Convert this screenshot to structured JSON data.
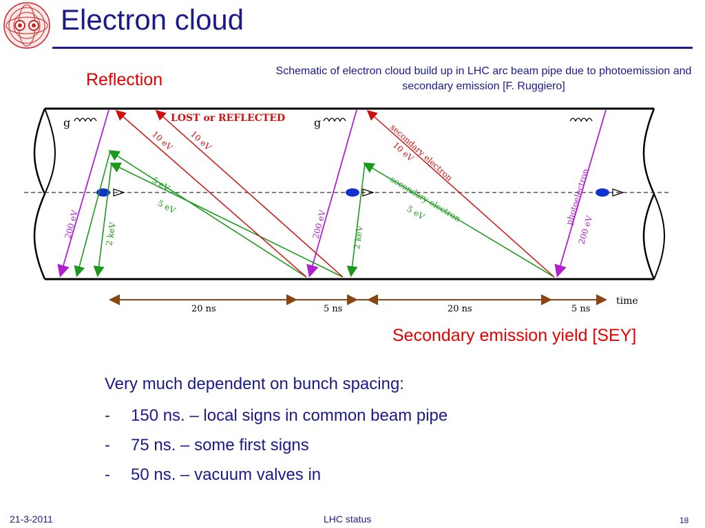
{
  "slide": {
    "title": "Electron cloud",
    "reflection_label": "Reflection",
    "caption": "Schematic of electron cloud build up in LHC arc beam pipe due to photoemission and secondary emission [F. Ruggiero]",
    "sey_label": "Secondary emission yield [SEY]"
  },
  "diagram": {
    "lost_label": "LOST or REFLECTED",
    "gamma1": "g",
    "gamma2": "g",
    "ev10_a": "10 eV",
    "ev10_b": "10 eV",
    "ev5_a": "5 eV",
    "ev5_b": "5 eV",
    "ev200_a": "200 eV",
    "kev2_a": "2 keV",
    "ev200_b": "200 eV",
    "kev2_b": "2 keV",
    "secondary_electron_top": "secondary electron",
    "ev10_c": "10 eV",
    "secondary_electron_mid": "secondary electron",
    "ev5_c": "5 eV",
    "photoelectron": "photoelectron",
    "ev200_c": "200 eV",
    "t20a": "20 ns",
    "t5a": "5 ns",
    "t20b": "20 ns",
    "t5b": "5 ns",
    "time": "time",
    "colors": {
      "red": "#d01010",
      "green": "#1a9a1a",
      "purple": "#b020d0",
      "bunch": "#1030d0",
      "timeline": "#8b4513"
    }
  },
  "bullets": {
    "lead": "Very much dependent on bunch spacing:",
    "items": [
      {
        "dash": "-",
        "text": "150 ns. – local signs in common beam pipe"
      },
      {
        "dash": "-",
        "text": "75 ns. – some first signs"
      },
      {
        "dash": "-",
        "text": "50 ns. – vacuum valves in"
      }
    ]
  },
  "footer": {
    "date": "21-3-2011",
    "center": "LHC status",
    "page": "18"
  }
}
